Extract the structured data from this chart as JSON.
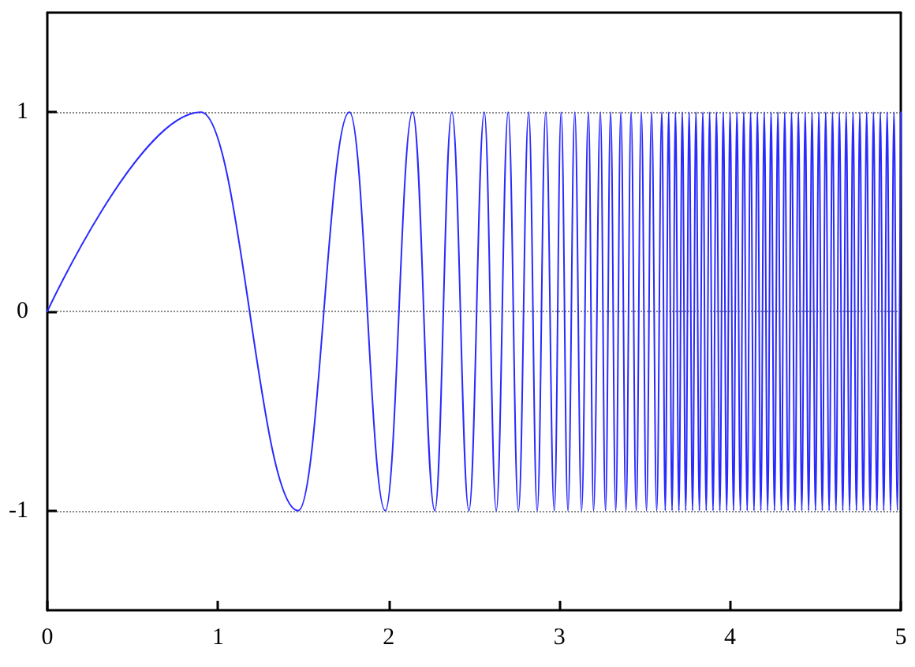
{
  "chart_data": {
    "type": "line",
    "x": [
      0,
      0.9,
      1.47,
      1.77,
      1.98,
      2.14,
      2.27,
      2.37,
      2.47,
      2.56,
      2.63,
      2.7,
      2.76,
      2.82,
      2.87,
      2.92,
      2.97,
      3.01,
      3.05,
      3.09,
      3.13,
      3.17,
      3.2,
      3.24,
      3.27,
      3.3,
      3.33,
      3.36,
      3.39,
      3.42,
      3.45,
      3.48,
      3.51,
      3.54,
      3.57,
      3.6,
      3.62,
      3.64,
      3.66,
      3.68,
      3.7,
      3.72,
      3.74,
      3.76,
      3.78,
      3.8,
      3.82,
      3.84,
      3.86,
      3.88,
      3.9,
      3.92,
      3.94,
      3.96,
      3.98,
      4,
      4.02,
      4.04,
      4.06,
      4.08,
      4.1,
      4.12,
      4.14,
      4.16,
      4.18,
      4.2,
      4.22,
      4.24,
      4.26,
      4.28,
      4.3,
      4.32,
      4.34,
      4.36,
      4.38,
      4.4,
      4.42,
      4.44,
      4.46,
      4.48,
      4.5,
      4.52,
      4.54,
      4.56,
      4.58,
      4.6,
      4.62,
      4.64,
      4.66,
      4.68,
      4.7,
      4.72,
      4.74,
      4.76,
      4.78,
      4.8,
      4.82,
      4.84,
      4.86,
      4.88,
      4.9,
      4.92,
      4.94,
      4.96,
      4.98,
      5
    ],
    "series": [
      {
        "color": "#2a2aff",
        "values": [
          0,
          1,
          -1,
          1,
          -1,
          1,
          -1,
          1,
          -1,
          1,
          -1,
          1,
          -1,
          1,
          -1,
          1,
          -1,
          1,
          -1,
          1,
          -1,
          1,
          -1,
          1,
          -1,
          1,
          -1,
          1,
          -1,
          1,
          -1,
          1,
          -1,
          1,
          -1,
          1,
          -1,
          1,
          -1,
          1,
          -1,
          1,
          -1,
          1,
          -1,
          1,
          -1,
          1,
          -1,
          1,
          -1,
          1,
          -1,
          1,
          -1,
          1,
          -1,
          1,
          -1,
          1,
          -1,
          1,
          -1,
          1,
          -1,
          1,
          -1,
          1,
          -1,
          1,
          -1,
          1,
          -1,
          1,
          -1,
          1,
          -1,
          1,
          -1,
          1,
          -1,
          1,
          -1,
          1,
          -1,
          1,
          -1,
          1,
          -1,
          1,
          -1,
          1,
          -1,
          1,
          -1,
          1,
          -1,
          1,
          -1,
          1,
          -1,
          1,
          -1,
          1,
          -1,
          1
        ]
      }
    ],
    "xlim": [
      0,
      5
    ],
    "xticks": [
      0,
      1,
      2,
      3,
      4,
      5
    ],
    "ylim": [
      -1.5,
      1.5
    ],
    "yticks": [
      -1,
      0,
      1
    ],
    "grid": "y",
    "marker": "none",
    "line_style": "solid"
  }
}
